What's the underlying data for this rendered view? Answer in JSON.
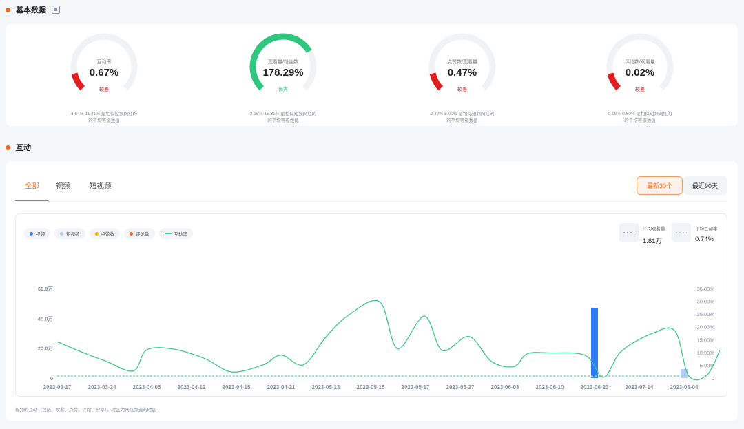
{
  "sections": {
    "basic_title": "基本数据",
    "interaction_title": "互动"
  },
  "gauges": [
    {
      "label": "互动率",
      "value": "0.67%",
      "rating": "较差",
      "rating_color": "#e02020",
      "fill": 0.12,
      "color": "#e02020",
      "note_line1": "4.64%-11.41% 是相似短频网红的",
      "note_line2": "的平均等级数值"
    },
    {
      "label": "观看量/粉丝数",
      "value": "178.29%",
      "rating": "优秀",
      "rating_color": "#2fc67e",
      "fill": 0.72,
      "color": "#2fc67e",
      "note_line1": "3.15%-15.31% 是相似短频网红的",
      "note_line2": "的平均等级数值"
    },
    {
      "label": "点赞数/观看量",
      "value": "0.47%",
      "rating": "较差",
      "rating_color": "#e02020",
      "fill": 0.12,
      "color": "#e02020",
      "note_line1": "2.40%-5.00% 是相似短频网红的",
      "note_line2": "的平均等级数值"
    },
    {
      "label": "评论数/观看量",
      "value": "0.02%",
      "rating": "较差",
      "rating_color": "#e02020",
      "fill": 0.12,
      "color": "#e02020",
      "note_line1": "0.16%-0.60% 是相似短频网红的",
      "note_line2": "的平均等级数值"
    }
  ],
  "tabs": [
    "全部",
    "视频",
    "短视频"
  ],
  "range_buttons": [
    "最新30个",
    "最近90天"
  ],
  "legend": [
    {
      "label": "视频",
      "color": "#2f7cf6",
      "kind": "dot"
    },
    {
      "label": "短视频",
      "color": "#b6cdf7",
      "kind": "dot"
    },
    {
      "label": "点赞数",
      "color": "#f6b100",
      "kind": "dot"
    },
    {
      "label": "评论数",
      "color": "#f06a1d",
      "kind": "dot"
    },
    {
      "label": "互动率",
      "color": "#3cc98a",
      "kind": "line"
    }
  ],
  "averages": [
    {
      "label": "平均观看量",
      "value": "1.81万",
      "color": "#7fa5ee"
    },
    {
      "label": "平均互动率",
      "value": "0.74%",
      "color": "#8fdcbb"
    }
  ],
  "footnote": "视频的互动（包括，观看、点赞、评论、分享），时区为网红频道的时区",
  "chart_data": {
    "type": "bar+line",
    "left_axis": {
      "ticks": [
        "0",
        "20.0万",
        "40.0万",
        "60.0万"
      ],
      "range": [
        0,
        60
      ]
    },
    "right_axis": {
      "ticks": [
        "0",
        "5.00%",
        "10.00%",
        "15.00%",
        "20.00%",
        "25.00%",
        "30.00%",
        "35.00%"
      ],
      "range": [
        0,
        35
      ]
    },
    "date_labels": [
      "2023-03-17",
      "2023-03-24",
      "2023-04-05",
      "2023-04-12",
      "2023-04-15",
      "2023-04-21",
      "2023-05-13",
      "2023-05-15",
      "2023-05-17",
      "2023-05-27",
      "2023-06-03",
      "2023-06-10",
      "2023-06-23",
      "2023-07-14",
      "2023-08-04"
    ],
    "bars": [
      {
        "x": 12.0,
        "value": 47,
        "series": "视频"
      },
      {
        "x": 14.0,
        "value": 6,
        "series": "短视频"
      }
    ],
    "engagement_rate": [
      {
        "x": 0,
        "y": 14.2
      },
      {
        "x": 0.5,
        "y": 10.5
      },
      {
        "x": 1.1,
        "y": 6.5
      },
      {
        "x": 1.7,
        "y": 2.8
      },
      {
        "x": 2.0,
        "y": 11.0
      },
      {
        "x": 2.6,
        "y": 11.3
      },
      {
        "x": 3.3,
        "y": 7.6
      },
      {
        "x": 3.9,
        "y": 2.4
      },
      {
        "x": 4.6,
        "y": 5.2
      },
      {
        "x": 5.0,
        "y": 9.0
      },
      {
        "x": 5.5,
        "y": 5.2
      },
      {
        "x": 6.0,
        "y": 16.0
      },
      {
        "x": 6.5,
        "y": 24.5
      },
      {
        "x": 7.2,
        "y": 29.8
      },
      {
        "x": 7.6,
        "y": 11.5
      },
      {
        "x": 8.2,
        "y": 24.2
      },
      {
        "x": 8.6,
        "y": 10.8
      },
      {
        "x": 9.2,
        "y": 16.2
      },
      {
        "x": 9.7,
        "y": 6.5
      },
      {
        "x": 10.2,
        "y": 4.5
      },
      {
        "x": 10.5,
        "y": 9.5
      },
      {
        "x": 11.0,
        "y": 9.8
      },
      {
        "x": 11.8,
        "y": 8.8
      },
      {
        "x": 12.2,
        "y": 0.3
      },
      {
        "x": 12.6,
        "y": 10.5
      },
      {
        "x": 13.3,
        "y": 17.5
      },
      {
        "x": 13.8,
        "y": 18.3
      },
      {
        "x": 14.1,
        "y": 1.0
      },
      {
        "x": 14.5,
        "y": 1.0
      },
      {
        "x": 14.8,
        "y": 10.8
      }
    ],
    "average_views": 1.81,
    "average_rate": 0.74
  }
}
